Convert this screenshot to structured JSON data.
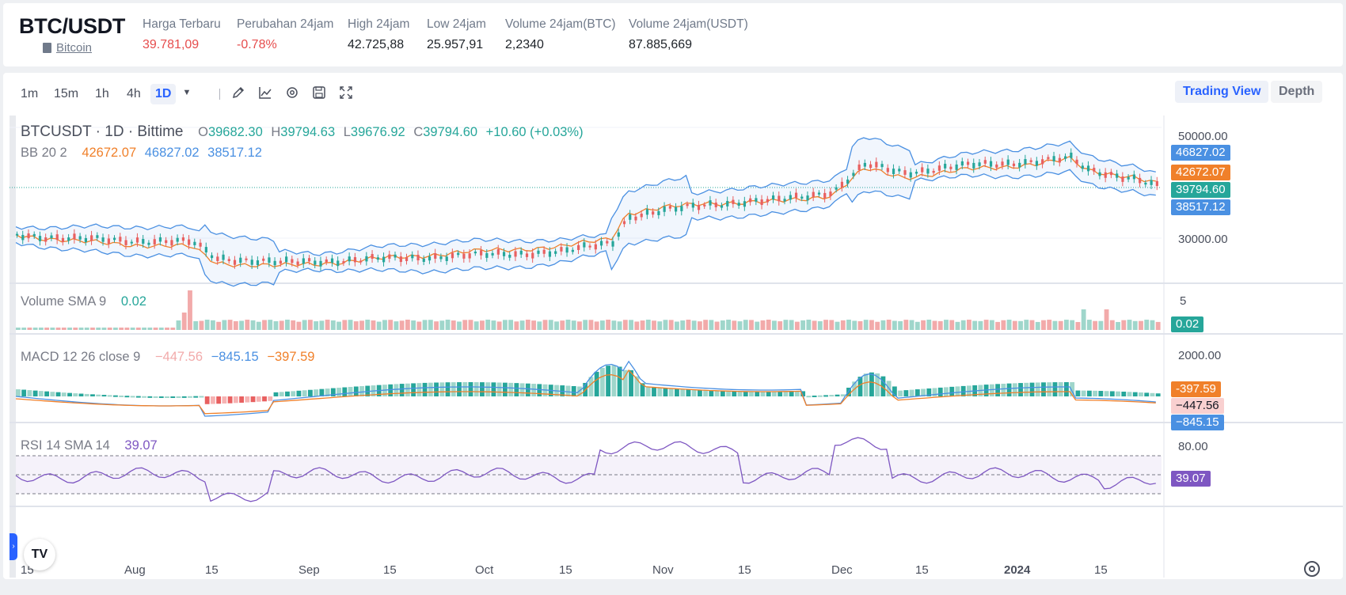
{
  "header": {
    "pair": "BTC/USDT",
    "coin_name": "Bitcoin",
    "stats": [
      {
        "label": "Harga Terbaru",
        "value": "39.781,09",
        "color": "#e64d4d"
      },
      {
        "label": "Perubahan 24jam",
        "value": "-0.78%",
        "color": "#e64d4d"
      },
      {
        "label": "High 24jam",
        "value": "42.725,88",
        "color": "#1e2329"
      },
      {
        "label": "Low 24jam",
        "value": "25.957,91",
        "color": "#1e2329"
      },
      {
        "label": "Volume 24jam(BTC)",
        "value": "2,2340",
        "color": "#1e2329"
      },
      {
        "label": "Volume 24jam(USDT)",
        "value": "87.885,669",
        "color": "#1e2329"
      }
    ]
  },
  "toolbar": {
    "timeframes": [
      "1m",
      "15m",
      "1h",
      "4h",
      "1D"
    ],
    "active_timeframe": "1D",
    "icons": [
      "chevron-down-icon",
      "pencil-icon",
      "indicators-icon",
      "settings-icon",
      "save-icon",
      "fullscreen-icon"
    ],
    "views": [
      "Trading View",
      "Depth"
    ],
    "active_view": "Trading View"
  },
  "legend": {
    "symbol": "BTCUSDT · 1D · Bittime",
    "o_label": "O",
    "o": "39682.30",
    "h_label": "H",
    "h": "39794.63",
    "l_label": "L",
    "l": "39676.92",
    "c_label": "C",
    "c": "39794.60",
    "change": "+10.60 (+0.03%)",
    "bb_label": "BB 20 2",
    "bb_mid": "42672.07",
    "bb_upper": "46827.02",
    "bb_lower": "38517.12",
    "vol_label": "Volume SMA 9",
    "vol_value": "0.02",
    "macd_label": "MACD 12 26 close 9",
    "macd_hist": "−447.56",
    "macd_line": "−845.15",
    "macd_signal": "−397.59",
    "rsi_label": "RSI 14 SMA 14",
    "rsi_value": "39.07"
  },
  "price_axis": {
    "ticks": [
      "50000.00",
      "30000.00"
    ],
    "tags": [
      {
        "text": "46827.02",
        "color": "#4a90e2"
      },
      {
        "text": "42672.07",
        "color": "#f0802a"
      },
      {
        "text": "39794.60",
        "color": "#26a69a"
      },
      {
        "text": "38517.12",
        "color": "#4a90e2"
      }
    ]
  },
  "volume_axis": {
    "ticks": [
      "5"
    ],
    "tag": "0.02"
  },
  "macd_axis": {
    "ticks": [
      "2000.00"
    ],
    "tags": [
      "-397.59",
      "−447.56",
      "−845.15"
    ]
  },
  "rsi_axis": {
    "ticks": [
      "80.00"
    ],
    "tag": "39.07"
  },
  "time_axis": [
    "15",
    "Aug",
    "15",
    "Sep",
    "15",
    "Oct",
    "15",
    "Nov",
    "15",
    "Dec",
    "15",
    "2024",
    "15"
  ],
  "branding": {
    "logo": "TV"
  },
  "colors": {
    "up": "#26a69a",
    "down": "#e86060",
    "bb_band": "#4a90e2",
    "bb_mid": "#f0802a",
    "rsi": "#7e57c2"
  }
}
